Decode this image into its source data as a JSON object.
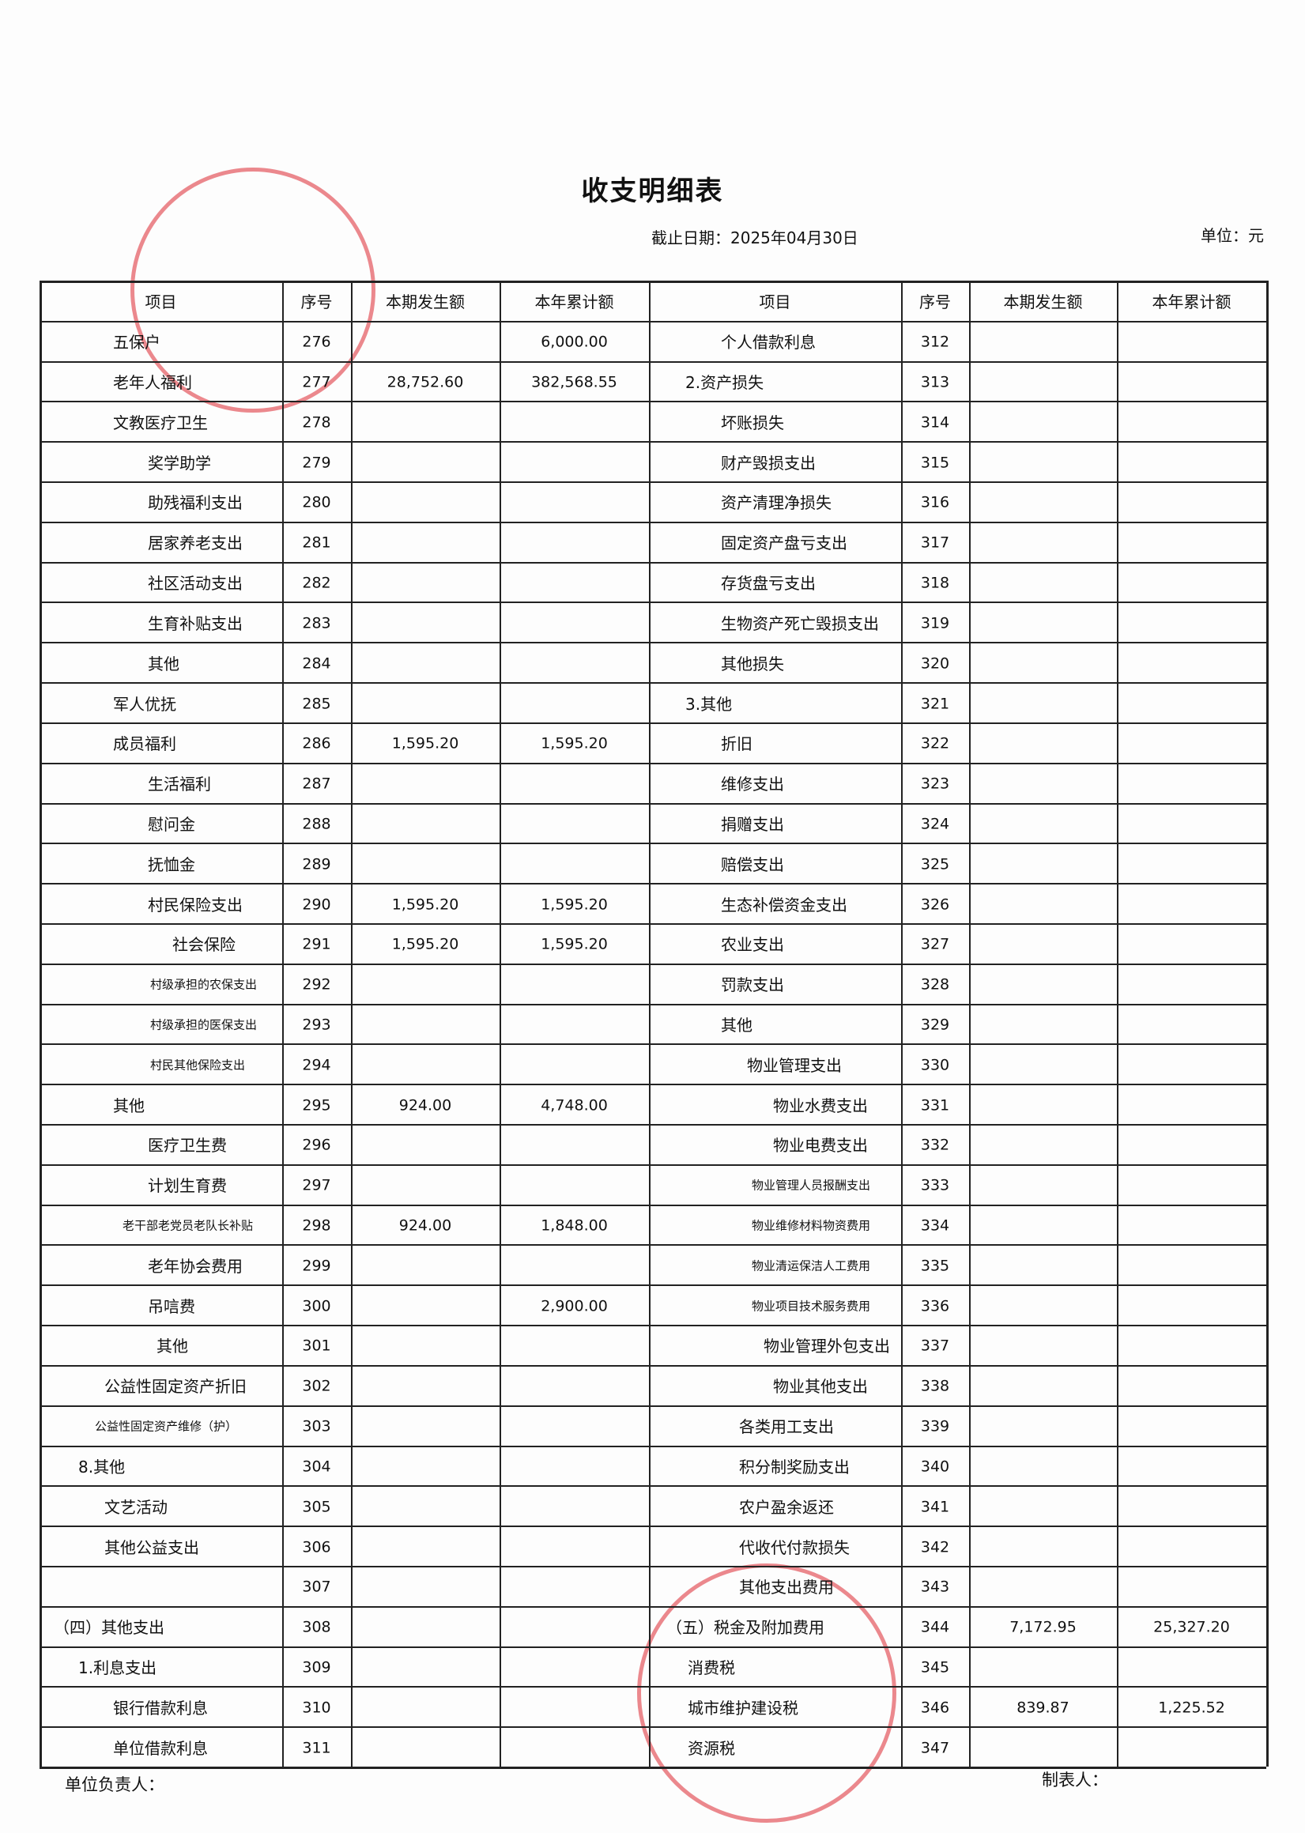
{
  "header": {
    "title": "收支明细表",
    "date": "截止日期：2025年04月30日",
    "unit": "单位：元"
  },
  "table": {
    "columns": [
      "项目",
      "序号",
      "本期发生额",
      "本年累计额",
      "项目",
      "序号",
      "本期发生额",
      "本年累计额"
    ],
    "rows": [
      [
        "五保户",
        "276",
        null,
        "6,000.00",
        "个人借款利息",
        "312",
        null,
        null
      ],
      [
        "老年人福利",
        "277",
        "28,752.60",
        "382,568.55",
        "2.资产损失",
        "313",
        null,
        null
      ],
      [
        "文教医疗卫生",
        "278",
        null,
        null,
        "坏账损失",
        "314",
        null,
        null
      ],
      [
        "奖学助学",
        "279",
        null,
        null,
        "财产毁损支出",
        "315",
        null,
        null
      ],
      [
        "助残福利支出",
        "280",
        null,
        null,
        "资产清理净损失",
        "316",
        null,
        null
      ],
      [
        "居家养老支出",
        "281",
        null,
        null,
        "固定资产盘亏支出",
        "317",
        null,
        null
      ],
      [
        "社区活动支出",
        "282",
        null,
        null,
        "存货盘亏支出",
        "318",
        null,
        null
      ],
      [
        "生育补贴支出",
        "283",
        null,
        null,
        "生物资产死亡毁损支出",
        "319",
        null,
        null
      ],
      [
        "其他",
        "284",
        null,
        null,
        "其他损失",
        "320",
        null,
        null
      ],
      [
        "军人优抚",
        "285",
        null,
        null,
        "3.其他",
        "321",
        null,
        null
      ],
      [
        "成员福利",
        "286",
        "1,595.20",
        "1,595.20",
        "折旧",
        "322",
        null,
        null
      ],
      [
        "生活福利",
        "287",
        null,
        null,
        "维修支出",
        "323",
        null,
        null
      ],
      [
        "慰问金",
        "288",
        null,
        null,
        "捐赠支出",
        "324",
        null,
        null
      ],
      [
        "抚恤金",
        "289",
        null,
        null,
        "赔偿支出",
        "325",
        null,
        null
      ],
      [
        "村民保险支出",
        "290",
        "1,595.20",
        "1,595.20",
        "生态补偿资金支出",
        "326",
        null,
        null
      ],
      [
        "社会保险",
        "291",
        "1,595.20",
        "1,595.20",
        "农业支出",
        "327",
        null,
        null
      ],
      [
        "村级承担的农保支出",
        "292",
        null,
        null,
        "罚款支出",
        "328",
        null,
        null
      ],
      [
        "村级承担的医保支出",
        "293",
        null,
        null,
        "其他",
        "329",
        null,
        null
      ],
      [
        "村民其他保险支出",
        "294",
        null,
        null,
        "物业管理支出",
        "330",
        null,
        null
      ],
      [
        "其他",
        "295",
        "924.00",
        "4,748.00",
        "物业水费支出",
        "331",
        null,
        null
      ],
      [
        "医疗卫生费",
        "296",
        null,
        null,
        "物业电费支出",
        "332",
        null,
        null
      ],
      [
        "计划生育费",
        "297",
        null,
        null,
        "物业管理人员报酬支出",
        "333",
        null,
        null
      ],
      [
        "老干部老党员老队长补贴",
        "298",
        "924.00",
        "1,848.00",
        "物业维修材料物资费用",
        "334",
        null,
        null
      ],
      [
        "老年协会费用",
        "299",
        null,
        null,
        "物业清运保洁人工费用",
        "335",
        null,
        null
      ],
      [
        "吊唁费",
        "300",
        null,
        "2,900.00",
        "物业项目技术服务费用",
        "336",
        null,
        null
      ],
      [
        "其他",
        "301",
        null,
        null,
        "物业管理外包支出",
        "337",
        null,
        null
      ],
      [
        "公益性固定资产折旧",
        "302",
        null,
        null,
        "物业其他支出",
        "338",
        null,
        null
      ],
      [
        "公益性固定资产维修（护）",
        "303",
        null,
        null,
        "各类用工支出",
        "339",
        null,
        null
      ],
      [
        "8.其他",
        "304",
        null,
        null,
        "积分制奖励支出",
        "340",
        null,
        null
      ],
      [
        "文艺活动",
        "305",
        null,
        null,
        "农户盈余返还",
        "341",
        null,
        null
      ],
      [
        "其他公益支出",
        "306",
        null,
        null,
        "代收代付款损失",
        "342",
        null,
        null
      ],
      [
        null,
        "307",
        null,
        null,
        "其他支出费用",
        "343",
        null,
        null
      ],
      [
        "（四）其他支出",
        "308",
        null,
        null,
        "（五）税金及附加费用",
        "344",
        "7,172.95",
        "25,327.20"
      ],
      [
        "1.利息支出",
        "309",
        null,
        null,
        "消费税",
        "345",
        null,
        null
      ],
      [
        "银行借款利息",
        "310",
        null,
        null,
        "城市维护建设税",
        "346",
        "839.87",
        "1,225.52"
      ],
      [
        "单位借款利息",
        "311",
        null,
        null,
        "资源税",
        "347",
        null,
        null
      ]
    ]
  },
  "footer": {
    "leader": "单位负责人：",
    "preparer": "制表人："
  }
}
